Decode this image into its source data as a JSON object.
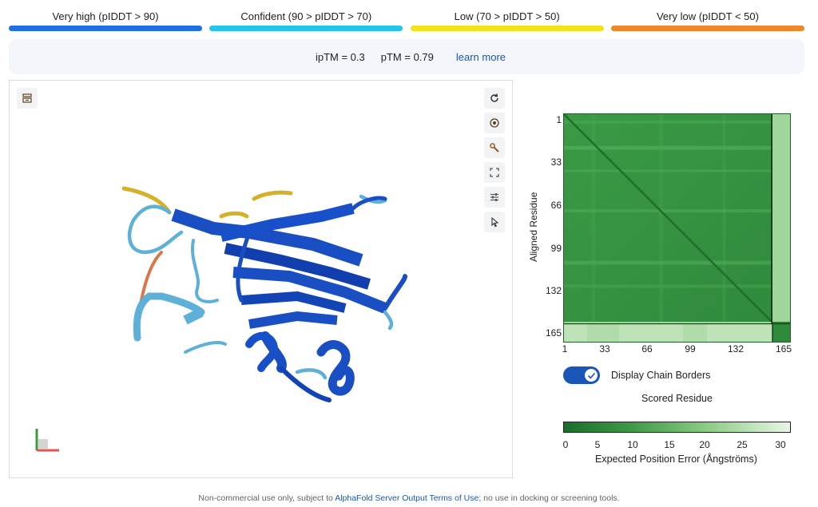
{
  "legend": [
    {
      "label": "Very high (pIDDT > 90)",
      "color": "#1f6fe5"
    },
    {
      "label": "Confident (90 > pIDDT > 70)",
      "color": "#27c3e8"
    },
    {
      "label": "Low (70 > pIDDT > 50)",
      "color": "#f2e21c"
    },
    {
      "label": "Very low (pIDDT < 50)",
      "color": "#ee8729"
    }
  ],
  "metrics": {
    "iptm": "ipTM = 0.3",
    "ptm": "pTM = 0.79",
    "learn_more": "learn more"
  },
  "viewer": {
    "buttons": [
      "save-image-icon",
      "reset-rotate-icon",
      "center-icon",
      "settings-wrench-icon",
      "fullscreen-icon",
      "sliders-icon",
      "select-cursor-icon"
    ]
  },
  "pae": {
    "ylabel": "Aligned Residue",
    "yticks": [
      "1",
      "33",
      "66",
      "99",
      "132",
      "165"
    ],
    "xticks": [
      "1",
      "33",
      "66",
      "99",
      "132",
      "165"
    ],
    "toggle_label": "Display Chain Borders",
    "scored_label": "Scored Residue",
    "colorbar_ticks": [
      "0",
      "5",
      "10",
      "15",
      "20",
      "25",
      "30"
    ],
    "colorbar_label": "Expected Position Error (Ångströms)"
  },
  "footer": {
    "prefix": "Non-commercial use only, subject to ",
    "link": "AlphaFold Server Output Terms of Use",
    "suffix": "; no use in docking or screening tools."
  }
}
